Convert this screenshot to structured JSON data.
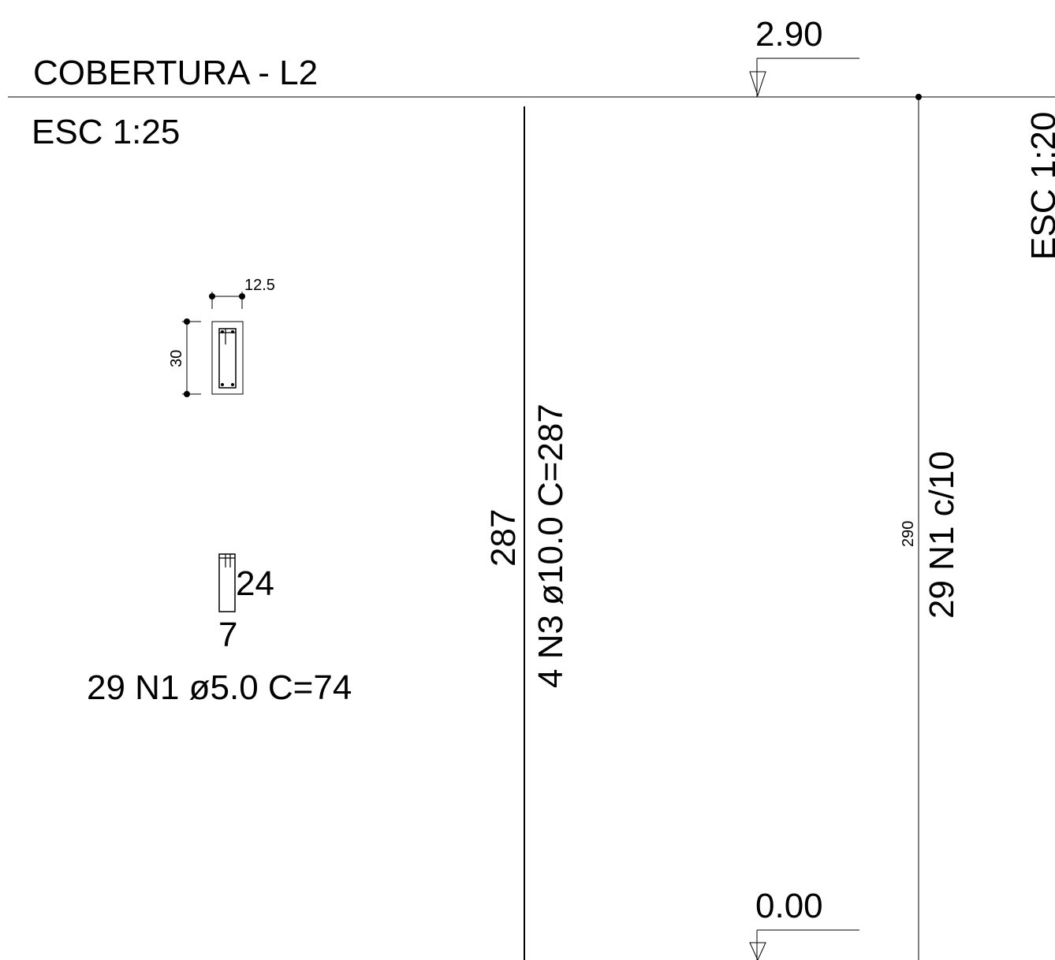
{
  "drawing": {
    "title": "COBERTURA - L2",
    "scale_left": "ESC 1:25",
    "scale_right": "ESC 1:20"
  },
  "section": {
    "width_dim": "12.5",
    "height_dim": "30"
  },
  "stirrup": {
    "height_label": "24",
    "width_label": "7",
    "callout": "29 N1 ø5.0  C=74"
  },
  "longitudinal_bar": {
    "length": "287",
    "callout": "4 N3 ø10.0  C=287"
  },
  "elevation": {
    "top_level": "2.90",
    "bottom_level": "0.00",
    "height_dim": "290",
    "stirrup_callout": "29 N1 c/10"
  }
}
